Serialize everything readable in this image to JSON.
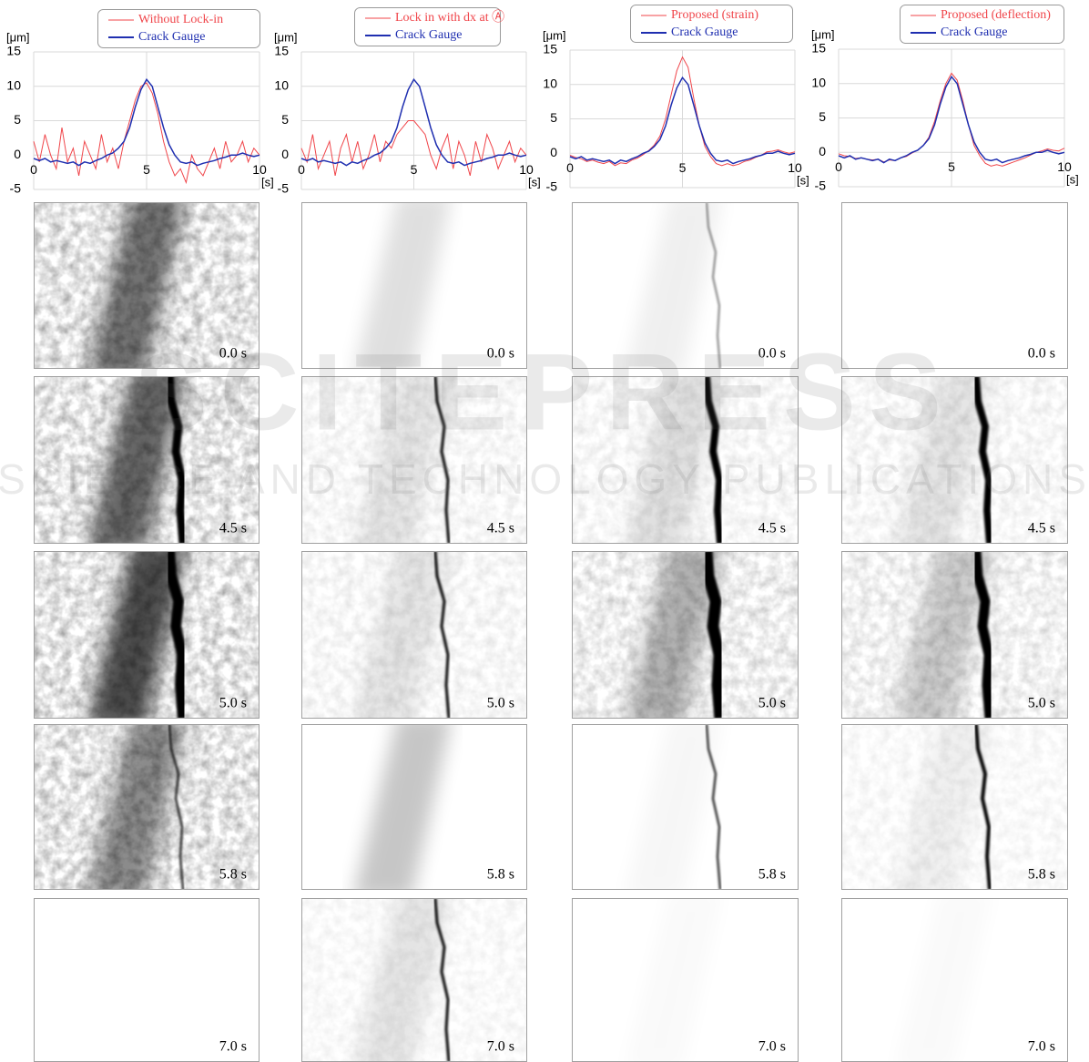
{
  "chart_data": [
    {
      "type": "line",
      "y_label": "[μm]",
      "x_label": "[s]",
      "x": [
        0,
        0.25,
        0.5,
        0.75,
        1,
        1.25,
        1.5,
        1.75,
        2,
        2.25,
        2.5,
        2.75,
        3,
        3.25,
        3.5,
        3.75,
        4,
        4.25,
        4.5,
        4.75,
        5,
        5.25,
        5.5,
        5.75,
        6,
        6.25,
        6.5,
        6.75,
        7,
        7.25,
        7.5,
        7.75,
        8,
        8.25,
        8.5,
        8.75,
        9,
        9.25,
        9.5,
        9.75,
        10
      ],
      "xlim": [
        0,
        10
      ],
      "xticks": [
        0,
        5,
        10
      ],
      "ylim": [
        -5,
        15
      ],
      "yticks": [
        -5,
        0,
        5,
        10,
        15
      ],
      "grid": true,
      "series": [
        {
          "name": "Without Lock-in",
          "color": "#f0454a",
          "values": [
            2,
            -1,
            3,
            0,
            -2,
            4,
            -1,
            1,
            -3,
            2,
            0,
            -2,
            3,
            -1,
            1,
            -2,
            2,
            5,
            8,
            10,
            10.5,
            9,
            6,
            2,
            -1,
            -3,
            -2,
            -4,
            0,
            -2,
            -3,
            -1,
            1,
            -2,
            2,
            -1,
            0,
            2,
            -1,
            1,
            0
          ]
        },
        {
          "name": "Crack Gauge",
          "color": "#1f2fb0",
          "values": [
            -0.5,
            -0.8,
            -0.5,
            -1,
            -0.8,
            -1,
            -1.2,
            -1,
            -1.5,
            -1,
            -1.2,
            -0.8,
            -0.5,
            0,
            0.3,
            1,
            2,
            4,
            7,
            9.5,
            11,
            10,
            7,
            4,
            1.5,
            0,
            -1,
            -1.2,
            -1,
            -1.5,
            -1.2,
            -1,
            -0.8,
            -0.5,
            -0.3,
            0,
            0,
            0.3,
            0,
            -0.2,
            0
          ]
        }
      ]
    },
    {
      "type": "line",
      "y_label": "[μm]",
      "x_label": "[s]",
      "x": [
        0,
        0.25,
        0.5,
        0.75,
        1,
        1.25,
        1.5,
        1.75,
        2,
        2.25,
        2.5,
        2.75,
        3,
        3.25,
        3.5,
        3.75,
        4,
        4.25,
        4.5,
        4.75,
        5,
        5.25,
        5.5,
        5.75,
        6,
        6.25,
        6.5,
        6.75,
        7,
        7.25,
        7.5,
        7.75,
        8,
        8.25,
        8.5,
        8.75,
        9,
        9.25,
        9.5,
        9.75,
        10
      ],
      "xlim": [
        0,
        10
      ],
      "xticks": [
        0,
        5,
        10
      ],
      "ylim": [
        -5,
        15
      ],
      "yticks": [
        -5,
        0,
        5,
        10,
        15
      ],
      "grid": true,
      "series": [
        {
          "name": "Lock in with dx at Ⓐ",
          "color": "#f0454a",
          "values": [
            1,
            -1,
            3,
            -2,
            0,
            2,
            -3,
            1,
            3,
            -1,
            2,
            -2,
            0,
            3,
            -1,
            2,
            1,
            3,
            4,
            5,
            5,
            4,
            3,
            0,
            -2,
            1,
            3,
            -2,
            2,
            0,
            -3,
            2,
            -1,
            3,
            1,
            -2,
            0,
            2,
            -1,
            1,
            0
          ]
        },
        {
          "name": "Crack Gauge",
          "color": "#1f2fb0",
          "values": [
            -0.5,
            -0.8,
            -0.5,
            -1,
            -0.8,
            -1,
            -1.2,
            -1,
            -1.5,
            -1,
            -1.2,
            -0.8,
            -0.5,
            0,
            0.3,
            1,
            2,
            4,
            7,
            9.5,
            11,
            10,
            7,
            4,
            1.5,
            0,
            -1,
            -1.2,
            -1,
            -1.5,
            -1.2,
            -1,
            -0.8,
            -0.5,
            -0.3,
            0,
            0,
            0.3,
            0,
            -0.2,
            0
          ]
        }
      ]
    },
    {
      "type": "line",
      "y_label": "[μm]",
      "x_label": "[s]",
      "x": [
        0,
        0.25,
        0.5,
        0.75,
        1,
        1.25,
        1.5,
        1.75,
        2,
        2.25,
        2.5,
        2.75,
        3,
        3.25,
        3.5,
        3.75,
        4,
        4.25,
        4.5,
        4.75,
        5,
        5.25,
        5.5,
        5.75,
        6,
        6.25,
        6.5,
        6.75,
        7,
        7.25,
        7.5,
        7.75,
        8,
        8.25,
        8.5,
        8.75,
        9,
        9.25,
        9.5,
        9.75,
        10
      ],
      "xlim": [
        0,
        10
      ],
      "xticks": [
        0,
        5,
        10
      ],
      "ylim": [
        -5,
        15
      ],
      "yticks": [
        -5,
        0,
        5,
        10,
        15
      ],
      "grid": true,
      "series": [
        {
          "name": "Proposed (strain)",
          "color": "#f0454a",
          "values": [
            -0.3,
            -0.6,
            -0.8,
            -1.2,
            -1,
            -1.3,
            -1.5,
            -1.2,
            -1.8,
            -1.4,
            -1.5,
            -1,
            -0.7,
            -0.2,
            0.4,
            1.2,
            2.5,
            5,
            8.5,
            12,
            14,
            12.5,
            8,
            4,
            1,
            -0.5,
            -1.5,
            -1.8,
            -1.5,
            -1.8,
            -1.6,
            -1.2,
            -1,
            -0.6,
            -0.3,
            0.2,
            0.3,
            0.5,
            0.2,
            0,
            0.2
          ]
        },
        {
          "name": "Crack Gauge",
          "color": "#1f2fb0",
          "values": [
            -0.5,
            -0.8,
            -0.5,
            -1,
            -0.8,
            -1,
            -1.2,
            -1,
            -1.5,
            -1,
            -1.2,
            -0.8,
            -0.5,
            0,
            0.3,
            1,
            2,
            4,
            7,
            9.5,
            11,
            10,
            7,
            4,
            1.5,
            0,
            -1,
            -1.2,
            -1,
            -1.5,
            -1.2,
            -1,
            -0.8,
            -0.5,
            -0.3,
            0,
            0,
            0.3,
            0,
            -0.2,
            0
          ]
        }
      ]
    },
    {
      "type": "line",
      "y_label": "[μm]",
      "x_label": "[s]",
      "x": [
        0,
        0.25,
        0.5,
        0.75,
        1,
        1.25,
        1.5,
        1.75,
        2,
        2.25,
        2.5,
        2.75,
        3,
        3.25,
        3.5,
        3.75,
        4,
        4.25,
        4.5,
        4.75,
        5,
        5.25,
        5.5,
        5.75,
        6,
        6.25,
        6.5,
        6.75,
        7,
        7.25,
        7.5,
        7.75,
        8,
        8.25,
        8.5,
        8.75,
        9,
        9.25,
        9.5,
        9.75,
        10
      ],
      "xlim": [
        0,
        10
      ],
      "xticks": [
        0,
        5,
        10
      ],
      "ylim": [
        -5,
        15
      ],
      "yticks": [
        -5,
        0,
        5,
        10,
        15
      ],
      "grid": true,
      "series": [
        {
          "name": "Proposed (deflection)",
          "color": "#f0454a",
          "values": [
            -0.2,
            -0.5,
            -0.6,
            -0.9,
            -0.8,
            -1,
            -1.1,
            -1,
            -1.4,
            -1.1,
            -1.2,
            -0.8,
            -0.6,
            -0.1,
            0.3,
            1,
            2.2,
            4.5,
            7.5,
            10,
            11.5,
            10.5,
            7.5,
            4,
            1,
            -0.5,
            -1.6,
            -2,
            -1.8,
            -2,
            -1.7,
            -1.4,
            -1.1,
            -0.8,
            -0.4,
            0,
            0.2,
            0.5,
            0.3,
            0.2,
            0.6
          ]
        },
        {
          "name": "Crack Gauge",
          "color": "#1f2fb0",
          "values": [
            -0.5,
            -0.8,
            -0.5,
            -1,
            -0.8,
            -1,
            -1.2,
            -1,
            -1.5,
            -1,
            -1.2,
            -0.8,
            -0.5,
            0,
            0.3,
            1,
            2,
            4,
            7,
            9.5,
            11,
            10,
            7,
            4,
            1.5,
            0,
            -1,
            -1.2,
            -1,
            -1.5,
            -1.2,
            -1,
            -0.8,
            -0.5,
            -0.3,
            0,
            0,
            0.3,
            0,
            -0.2,
            0
          ]
        }
      ]
    }
  ],
  "panels": {
    "times": [
      "0.0 s",
      "4.5 s",
      "5.0 s",
      "5.8 s",
      "7.0 s"
    ]
  },
  "watermark": {
    "title": "SCITEPRESS",
    "subtitle": "SCIENCE AND TECHNOLOGY PUBLICATIONS"
  }
}
